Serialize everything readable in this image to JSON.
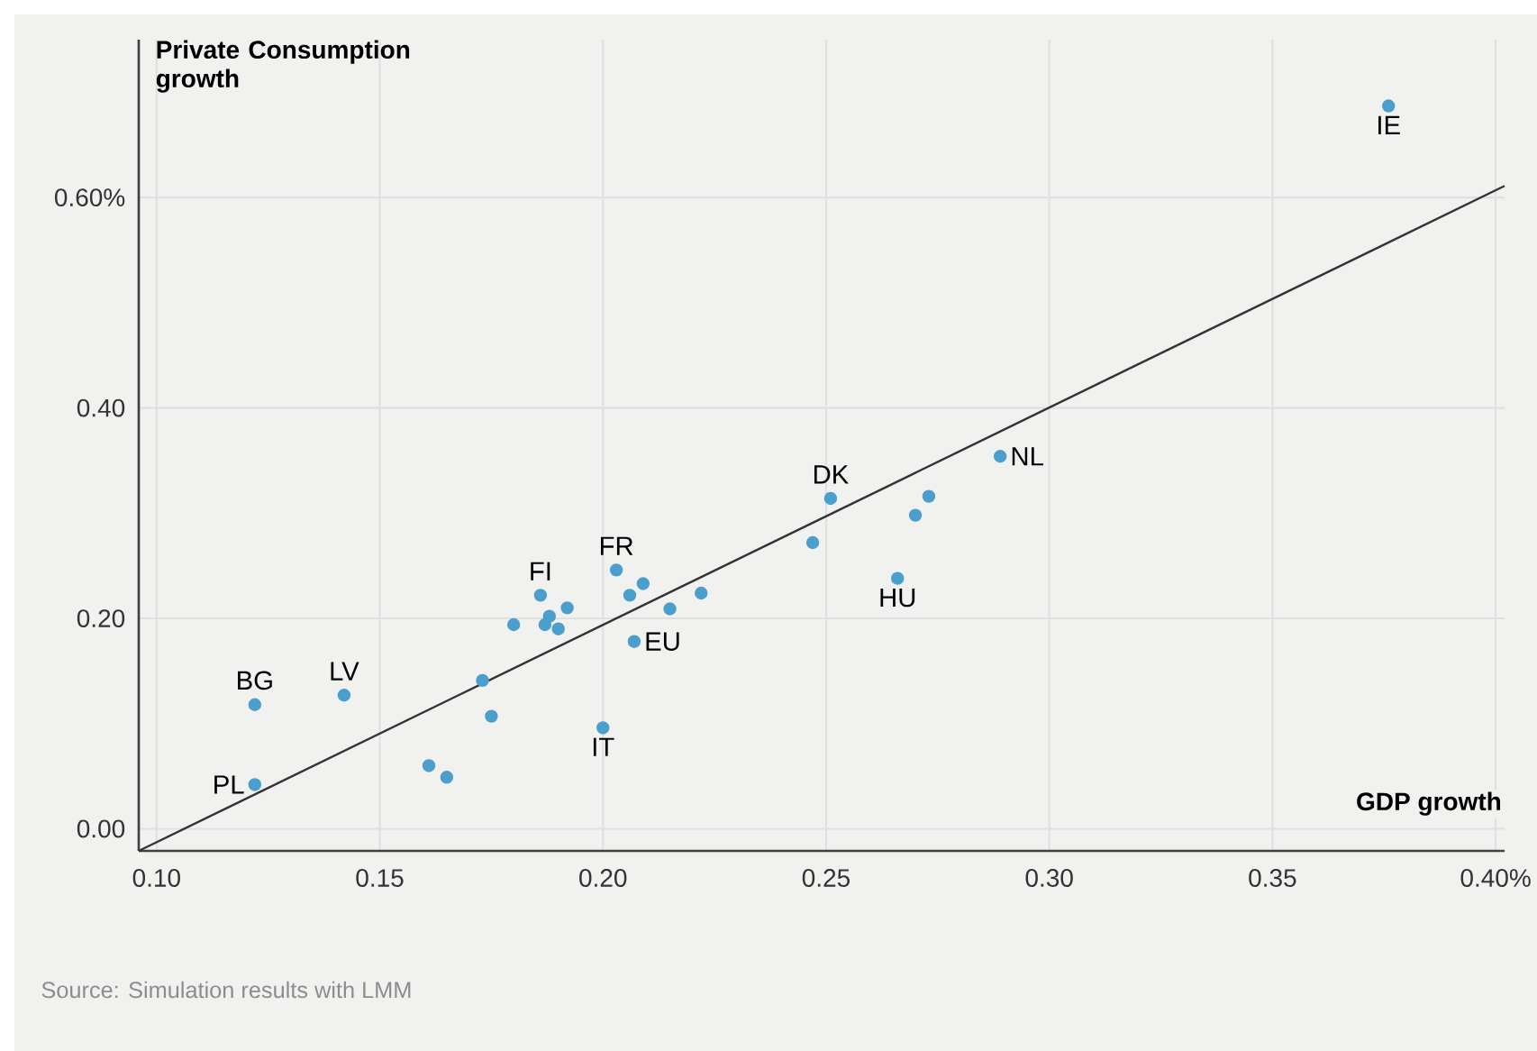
{
  "chart_data": {
    "type": "scatter",
    "xlabel": "GDP growth",
    "ylabel": "Private Consumption growth",
    "xlim": [
      0.096,
      0.402
    ],
    "ylim": [
      -0.021,
      0.75
    ],
    "xticks": [
      {
        "value": 0.1,
        "label": "0.10"
      },
      0.15,
      {
        "value": 0.2,
        "label": "0.20"
      },
      0.25,
      {
        "value": 0.3,
        "label": "0.30"
      },
      0.35,
      {
        "value": 0.4,
        "label": "0.40%"
      }
    ],
    "yticks": [
      {
        "value": 0,
        "label": "0.00"
      },
      {
        "value": 0.2,
        "label": "0.20"
      },
      {
        "value": 0.4,
        "label": "0.40"
      },
      {
        "value": 0.6,
        "label": "0.60%"
      }
    ],
    "grid": true,
    "series": [
      {
        "marker": "circle",
        "color": "#4b9fcc",
        "x": [
          0.122,
          0.122,
          0.142,
          0.161,
          0.165,
          0.173,
          0.175,
          0.18,
          0.186,
          0.188,
          0.187,
          0.19,
          0.192,
          0.2,
          0.203,
          0.206,
          0.209,
          0.207,
          0.215,
          0.222,
          0.251,
          0.247,
          0.266,
          0.27,
          0.273,
          0.289,
          0.376
        ],
        "values": [
          0.042,
          0.118,
          0.127,
          0.06,
          0.049,
          0.141,
          0.107,
          0.194,
          0.222,
          0.202,
          0.194,
          0.19,
          0.21,
          0.096,
          0.246,
          0.222,
          0.233,
          0.178,
          0.209,
          0.224,
          0.314,
          0.272,
          0.238,
          0.298,
          0.316,
          0.354,
          0.687
        ]
      },
      {
        "type": "line",
        "color": "#333333",
        "x": [
          0.096,
          0.402
        ],
        "values": [
          -0.021,
          0.611
        ]
      }
    ],
    "annotations": [
      {
        "text": "IE",
        "x": 0.376,
        "y": 0.687
      },
      {
        "text": "NL",
        "x": 0.289,
        "y": 0.354
      },
      {
        "text": "DK",
        "x": 0.251,
        "y": 0.314
      },
      {
        "text": "HU",
        "x": 0.266,
        "y": 0.238
      },
      {
        "text": "FR",
        "x": 0.203,
        "y": 0.246
      },
      {
        "text": "FI",
        "x": 0.186,
        "y": 0.222
      },
      {
        "text": "EU",
        "x": 0.207,
        "y": 0.178
      },
      {
        "text": "IT",
        "x": 0.2,
        "y": 0.096
      },
      {
        "text": "BG",
        "x": 0.122,
        "y": 0.118
      },
      {
        "text": "LV",
        "x": 0.142,
        "y": 0.127
      },
      {
        "text": "PL",
        "x": 0.122,
        "y": 0.042
      },
      "Source: Simulation results with LMM"
    ]
  }
}
